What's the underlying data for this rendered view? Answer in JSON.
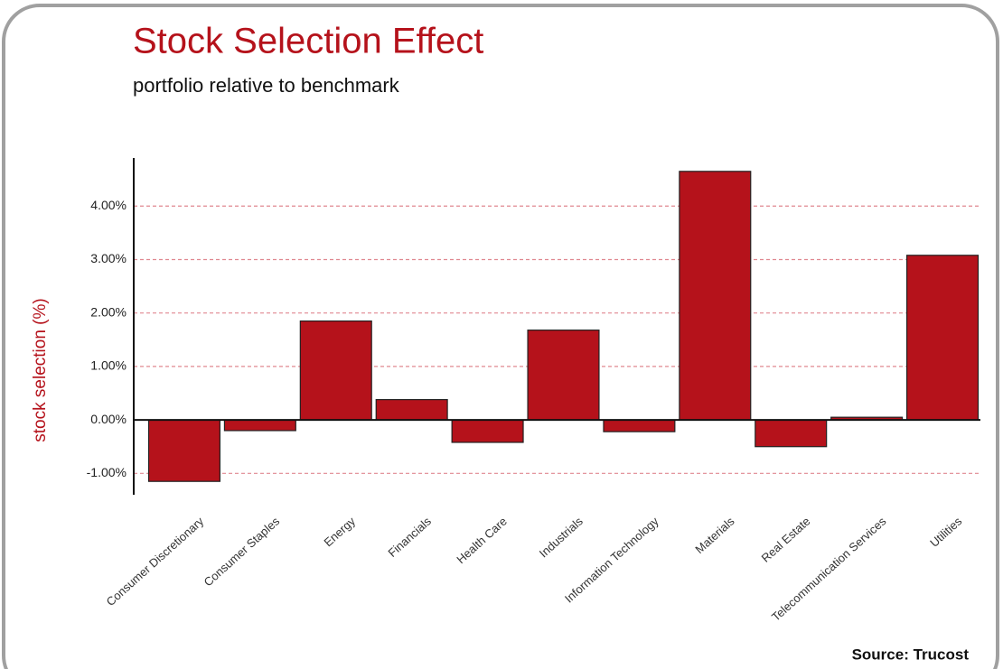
{
  "chart_data": {
    "type": "bar",
    "title": "Stock Selection Effect",
    "subtitle": "portfolio relative to benchmark",
    "y_label": "stock selection (%)",
    "source": "Source: Trucost",
    "categories": [
      "Consumer Discretionary",
      "Consumer Staples",
      "Energy",
      "Financials",
      "Health Care",
      "Industrials",
      "Information Technology",
      "Materials",
      "Real Estate",
      "Telecommunication Services",
      "Utilities"
    ],
    "values": [
      -1.15,
      -0.2,
      1.85,
      0.38,
      -0.42,
      1.68,
      -0.22,
      4.65,
      -0.5,
      0.05,
      3.08
    ],
    "color": "#b5121b",
    "ylim": [
      -1.4,
      4.9
    ],
    "yticks": [
      {
        "value": -1,
        "label": "-1.00%"
      },
      {
        "value": 0,
        "label": "0.00%"
      },
      {
        "value": 1,
        "label": "1.00%"
      },
      {
        "value": 2,
        "label": "2.00%"
      },
      {
        "value": 3,
        "label": "3.00%"
      },
      {
        "value": 4,
        "label": "4.00%"
      }
    ],
    "grid": true
  }
}
